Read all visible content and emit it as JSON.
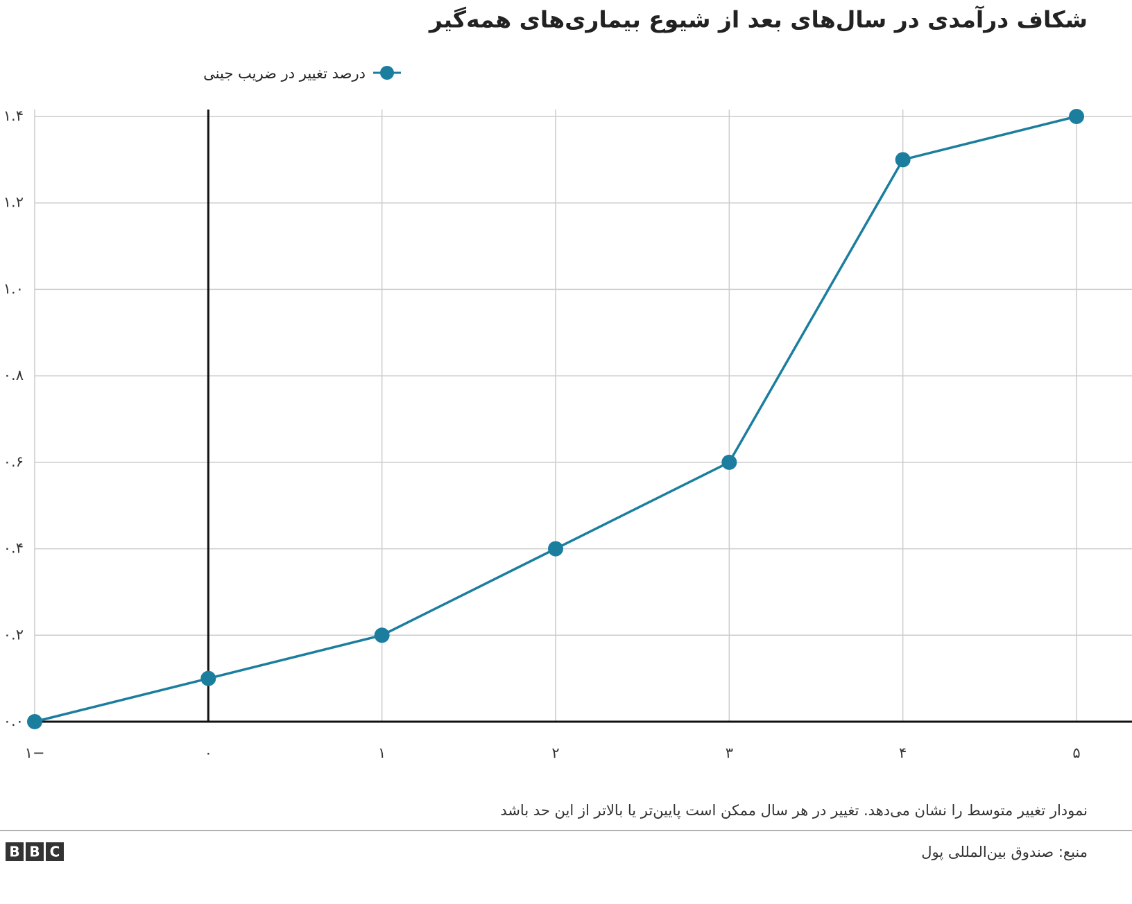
{
  "chart_data": {
    "type": "line",
    "title": "شکاف درآمدی در سال‌های بعد از شیوع بیماری‌های همه‌گیر",
    "x": [
      -1,
      0,
      1,
      2,
      3,
      4,
      5
    ],
    "series": [
      {
        "name": "درصد تغییر در ضریب جینی",
        "color": "#1b7e9f",
        "values": [
          0.0,
          0.1,
          0.2,
          0.4,
          0.6,
          1.3,
          1.4
        ]
      }
    ],
    "xlim": [
      -1,
      5
    ],
    "xticks": [
      {
        "value": -1,
        "label": "۱−"
      },
      {
        "value": 0,
        "label": "۰"
      },
      {
        "value": 1,
        "label": "۱"
      },
      {
        "value": 2,
        "label": "۲"
      },
      {
        "value": 3,
        "label": "۳"
      },
      {
        "value": 4,
        "label": "۴"
      },
      {
        "value": 5,
        "label": "۵"
      }
    ],
    "ylim": [
      0,
      1.4
    ],
    "yticks": [
      {
        "value": 0,
        "label": "۰.۰"
      },
      {
        "value": 0.2,
        "label": "۰.۲"
      },
      {
        "value": 0.4,
        "label": "۰.۴"
      },
      {
        "value": 0.6,
        "label": "۰.۶"
      },
      {
        "value": 0.8,
        "label": "۰.۸"
      },
      {
        "value": 1.0,
        "label": "۱.۰"
      },
      {
        "value": 1.2,
        "label": "۱.۲"
      },
      {
        "value": 1.4,
        "label": "۱.۴"
      }
    ],
    "grid": true,
    "vertical_line_x": 0,
    "note": "نمودار تغییر متوسط را نشان می‌دهد. تغییر در هر سال ممکن است پایین‌تر یا بالاتر از این حد باشد",
    "source": "منبع: صندوق بین‌المللی پول",
    "logo": "BBC"
  }
}
